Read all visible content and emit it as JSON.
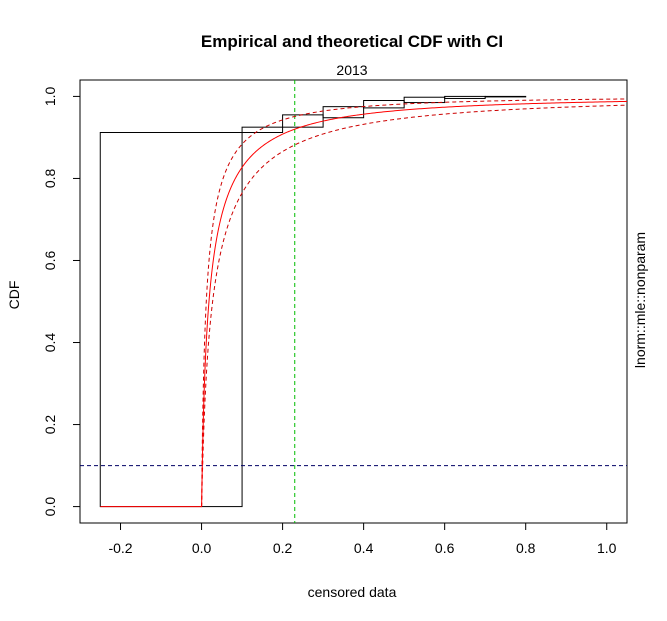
{
  "chart_data": {
    "type": "line",
    "title": "Empirical and theoretical CDF with CI",
    "subtitle": "2013",
    "xlabel": "censored data",
    "ylabel": "CDF",
    "right_label": "lnorm::mle::nonparam",
    "xlim": [
      -0.3,
      1.05
    ],
    "ylim": [
      -0.04,
      1.04
    ],
    "x_ticks": [
      -0.2,
      0.0,
      0.2,
      0.4,
      0.6,
      0.8,
      1.0
    ],
    "x_tick_labels": [
      "-0.2",
      "0.0",
      "0.2",
      "0.4",
      "0.6",
      "0.8",
      "1.0"
    ],
    "y_ticks": [
      0.0,
      0.2,
      0.4,
      0.6,
      0.8,
      1.0
    ],
    "y_tick_labels": [
      "0.0",
      "0.2",
      "0.4",
      "0.6",
      "0.8",
      "1.0"
    ],
    "grid": false,
    "empirical_rectangles": [
      {
        "x0": -0.25,
        "x1": 0.1,
        "y0": 0.0,
        "y1": 0.912
      },
      {
        "x0": 0.1,
        "x1": 0.2,
        "y0": 0.912,
        "y1": 0.925
      },
      {
        "x0": 0.2,
        "x1": 0.3,
        "y0": 0.925,
        "y1": 0.955
      },
      {
        "x0": 0.3,
        "x1": 0.4,
        "y0": 0.948,
        "y1": 0.975
      },
      {
        "x0": 0.4,
        "x1": 0.5,
        "y0": 0.972,
        "y1": 0.99
      },
      {
        "x0": 0.5,
        "x1": 0.6,
        "y0": 0.985,
        "y1": 0.998
      },
      {
        "x0": 0.6,
        "x1": 0.7,
        "y0": 0.995,
        "y1": 1.0
      },
      {
        "x0": 0.7,
        "x1": 0.8,
        "y0": 1.0,
        "y1": 1.0
      }
    ],
    "theoretical_cdf": {
      "meanlog": -4.0,
      "sdlog": 1.8,
      "x_start": -0.25,
      "x_end": 1.05
    },
    "confidence_band": {
      "lower": {
        "meanlog": -3.6,
        "sdlog": 1.8
      },
      "upper": {
        "meanlog": -4.45,
        "sdlog": 1.8
      }
    },
    "hline": {
      "y": 0.1,
      "color": "#000066"
    },
    "vline": {
      "x": 0.23,
      "color": "#00bb00"
    },
    "colors": {
      "empirical": "#000000",
      "theoretical": "#ff0000",
      "ci": "#cc0000"
    }
  }
}
